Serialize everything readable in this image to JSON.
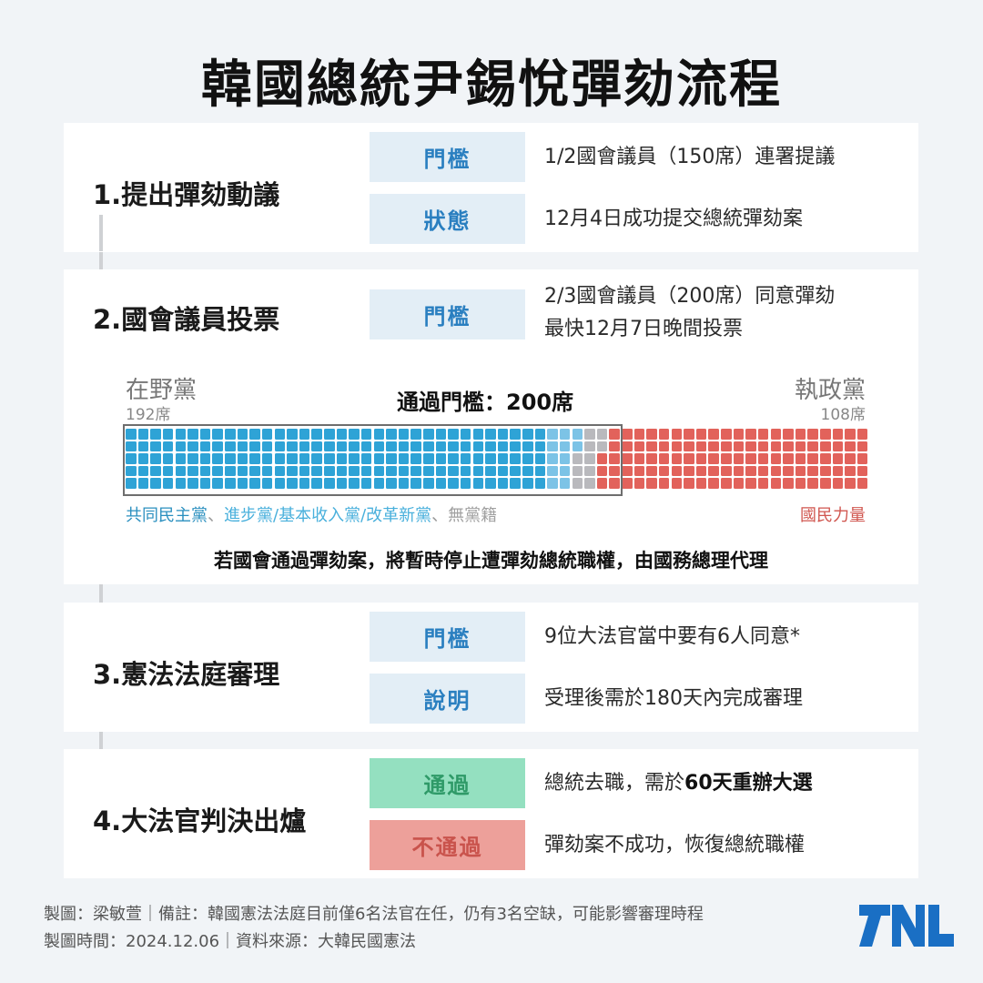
{
  "title": "韓國總統尹錫悅彈劾流程",
  "steps": [
    {
      "title": "1.提出彈劾動議",
      "rows": [
        {
          "tag": "門檻",
          "desc": "1/2國會議員（150席）連署提議"
        },
        {
          "tag": "狀態",
          "desc": "12月4日成功提交總統彈劾案"
        }
      ]
    },
    {
      "title": "2.國會議員投票",
      "rows": [
        {
          "tag": "門檻",
          "desc_line1": "2/3國會議員（200席）同意彈劾",
          "desc_line2": "最快12月7日晚間投票"
        }
      ]
    },
    {
      "title": "3.憲法法庭審理",
      "rows": [
        {
          "tag": "門檻",
          "desc": "9位大法官當中要有6人同意*"
        },
        {
          "tag": "說明",
          "desc": "受理後需於180天內完成審理"
        }
      ]
    },
    {
      "title": "4.大法官判決出爐",
      "rows": [
        {
          "tag": "通過",
          "desc_plain": "總統去職，需於",
          "desc_bold": "60天重辦大選"
        },
        {
          "tag": "不通過",
          "desc": "彈劾案不成功，恢復總統職權"
        }
      ]
    }
  ],
  "vote_chart": {
    "opposition_label": "在野黨",
    "opposition_seats": "192席",
    "ruling_label": "執政黨",
    "ruling_seats": "108席",
    "threshold_label": "通過門檻：200席",
    "legend": {
      "dp": "共同民主黨",
      "sep1": "、",
      "minor": "進步黨/基本收入黨/改革新黨",
      "sep2": "、",
      "independent": "無黨籍",
      "ppp": "國民力量"
    },
    "note": "若國會通過彈劾案，將暫時停止遭彈劾總統職權，由國務總理代理"
  },
  "chart_data": {
    "type": "waffle",
    "title": "通過門檻：200席",
    "total_seats": 300,
    "rows": 5,
    "columns": 60,
    "threshold": 200,
    "groups": [
      {
        "name": "共同民主黨",
        "side": "在野黨",
        "seats": 170,
        "color": "#2ea3d6"
      },
      {
        "name": "進步黨/基本收入黨/改革新黨",
        "side": "在野黨",
        "seats": 12,
        "color": "#7cc3e6"
      },
      {
        "name": "無黨籍",
        "side": "在野黨",
        "seats": 10,
        "color": "#b9b9bd"
      },
      {
        "name": "國民力量",
        "side": "執政黨",
        "seats": 108,
        "color": "#e2625b"
      }
    ],
    "opposition_total": 192,
    "ruling_total": 108
  },
  "colors": {
    "dp": "#2ea3d6",
    "minor": "#7cc3e6",
    "independent": "#b9b9bd",
    "ppp": "#e2625b",
    "tag_bg": "#e3eef6",
    "tag_text": "#2a7fc0",
    "pass_bg": "#94e0c0",
    "fail_bg": "#eda09a"
  },
  "footer": {
    "line1": "製圖：梁敏萱｜備註：韓國憲法法庭目前僅6名法官在任，仍有3名空缺，可能影響審理時程",
    "line2": "製圖時間：2024.12.06｜資料來源：大韓民國憲法",
    "logo": "TNL"
  }
}
